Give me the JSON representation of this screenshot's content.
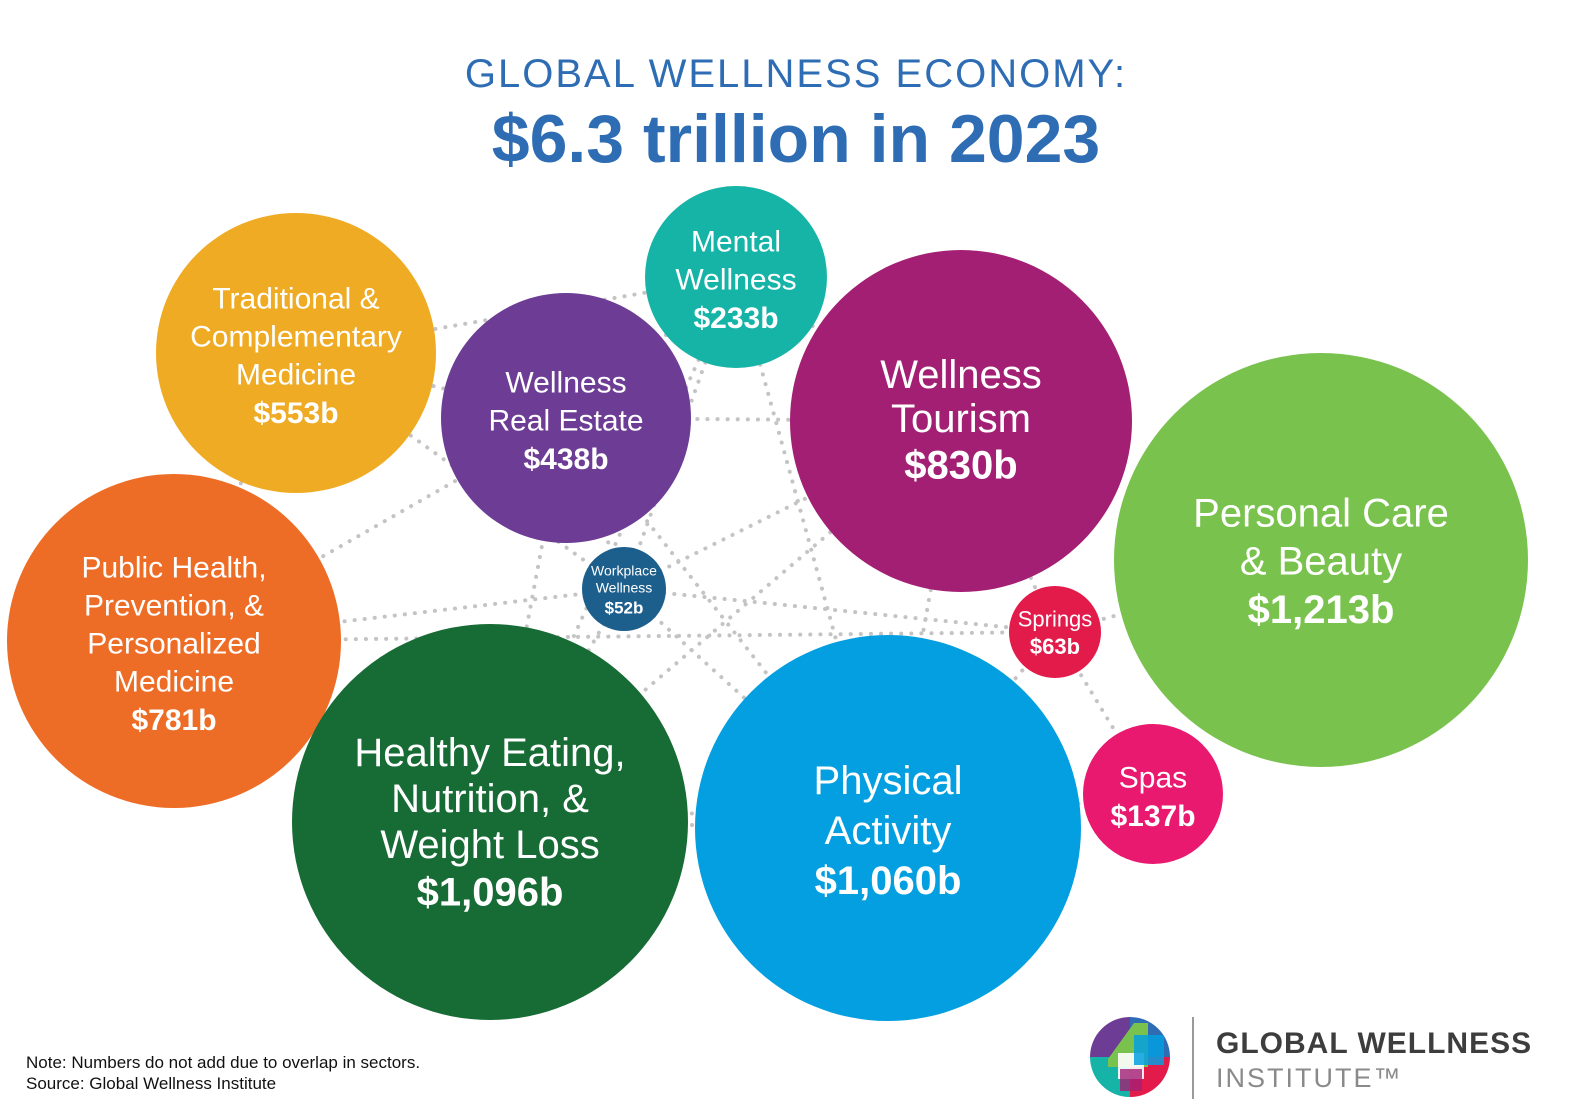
{
  "header": {
    "title": "GLOBAL WELLNESS ECONOMY:",
    "subtitle": "$6.3 trillion in 2023"
  },
  "chart_data": {
    "type": "bubble",
    "title": "GLOBAL WELLNESS ECONOMY:",
    "subtitle": "$6.3 trillion in 2023",
    "unit": "billion USD",
    "categories": [
      "Traditional & Complementary Medicine",
      "Mental Wellness",
      "Wellness Real Estate",
      "Wellness Tourism",
      "Personal Care & Beauty",
      "Public Health, Prevention, & Personalized Medicine",
      "Workplace Wellness",
      "Springs",
      "Healthy Eating, Nutrition, & Weight Loss",
      "Physical Activity",
      "Spas"
    ],
    "values": [
      553,
      233,
      438,
      830,
      1213,
      781,
      52,
      63,
      1096,
      1060,
      137
    ],
    "series": [
      {
        "key": "tcm",
        "label_lines": [
          "Traditional &",
          "Complementary",
          "Medicine"
        ],
        "value": 553,
        "value_label": "$553b",
        "color": "#efab23"
      },
      {
        "key": "mental",
        "label_lines": [
          "Mental",
          "Wellness"
        ],
        "value": 233,
        "value_label": "$233b",
        "color": "#16b3a7"
      },
      {
        "key": "realestate",
        "label_lines": [
          "Wellness",
          "Real Estate"
        ],
        "value": 438,
        "value_label": "$438b",
        "color": "#6d3d95"
      },
      {
        "key": "tourism",
        "label_lines": [
          "Wellness",
          "Tourism"
        ],
        "value": 830,
        "value_label": "$830b",
        "color": "#a31f74"
      },
      {
        "key": "beauty",
        "label_lines": [
          "Personal Care",
          "& Beauty"
        ],
        "value": 1213,
        "value_label": "$1,213b",
        "color": "#7ac24e"
      },
      {
        "key": "publichealth",
        "label_lines": [
          "Public Health,",
          "Prevention, &",
          "Personalized",
          "Medicine"
        ],
        "value": 781,
        "value_label": "$781b",
        "color": "#ee6d26"
      },
      {
        "key": "workplace",
        "label_lines": [
          "Workplace",
          "Wellness"
        ],
        "value": 52,
        "value_label": "$52b",
        "color": "#1c5e8c"
      },
      {
        "key": "springs",
        "label_lines": [
          "Springs"
        ],
        "value": 63,
        "value_label": "$63b",
        "color": "#e31b4b"
      },
      {
        "key": "eating",
        "label_lines": [
          "Healthy Eating,",
          "Nutrition, &",
          "Weight Loss"
        ],
        "value": 1096,
        "value_label": "$1,096b",
        "color": "#176b35"
      },
      {
        "key": "physical",
        "label_lines": [
          "Physical",
          "Activity"
        ],
        "value": 1060,
        "value_label": "$1,060b",
        "color": "#049fe0"
      },
      {
        "key": "spas",
        "label_lines": [
          "Spas"
        ],
        "value": 137,
        "value_label": "$137b",
        "color": "#e8196f"
      }
    ],
    "dotted_line_color": "#c4c4c4"
  },
  "footnote": {
    "note": "Note: Numbers do not add due to overlap in sectors.",
    "source": "Source: Global Wellness Institute"
  },
  "logo": {
    "line1": "GLOBAL WELLNESS",
    "line2": "INSTITUTE™",
    "icon": "global-wellness-institute-logo-mark",
    "colors": [
      "#6d3d95",
      "#7ac24e",
      "#049fe0",
      "#16b3a7",
      "#e31b4b",
      "#2e6db4"
    ]
  }
}
